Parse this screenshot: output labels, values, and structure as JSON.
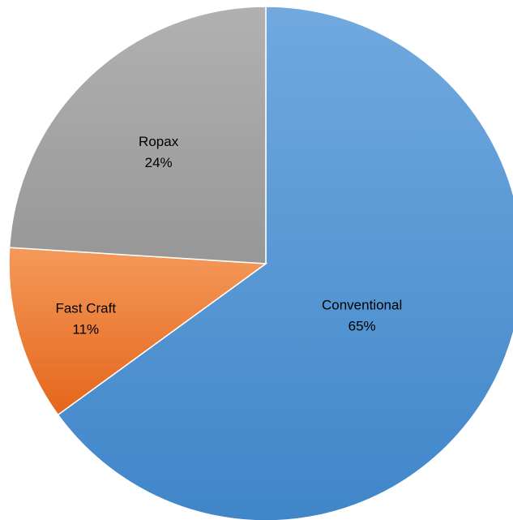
{
  "chart_data": {
    "type": "pie",
    "start_angle_deg": 0,
    "direction": "clockwise",
    "legend": "none",
    "slices": [
      {
        "label": "Conventional",
        "value": 65,
        "display": "65%",
        "color": "#5b9bd5"
      },
      {
        "label": "Fast Craft",
        "value": 11,
        "display": "11%",
        "color": "#ed7d31"
      },
      {
        "label": "Ropax",
        "value": 24,
        "display": "24%",
        "color": "#a5a5a5"
      }
    ]
  }
}
